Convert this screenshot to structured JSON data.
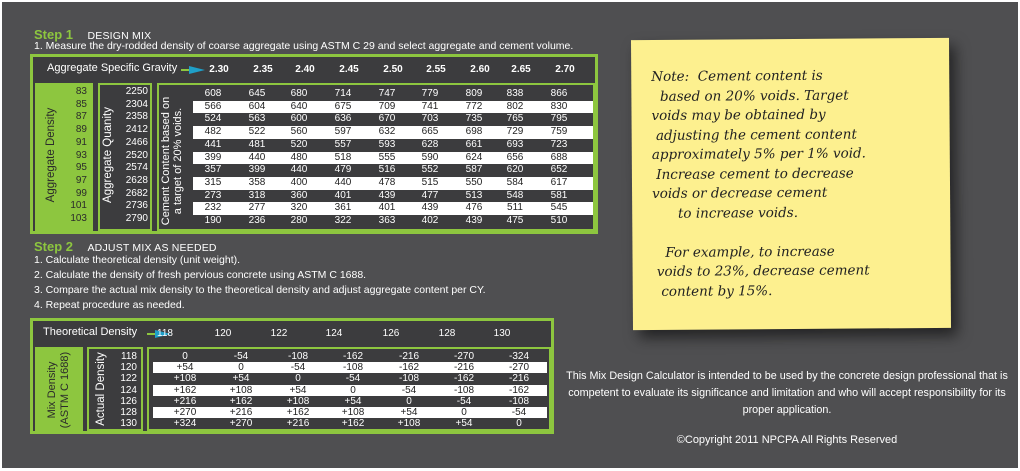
{
  "step1": {
    "number": "Step 1",
    "title": "DESIGN MIX",
    "instruction": "1. Measure the dry-rodded density of coarse aggregate using ASTM C 29 and select aggregate and cement volume.",
    "table": {
      "header_label": "Aggregate Specific Gravity",
      "specific_gravity": [
        "2.30",
        "2.35",
        "2.40",
        "2.45",
        "2.50",
        "2.55",
        "2.60",
        "2.65",
        "2.70"
      ],
      "aggregate_density_label": "Aggregate Density",
      "aggregate_density": [
        "83",
        "85",
        "87",
        "89",
        "91",
        "93",
        "95",
        "97",
        "99",
        "101",
        "103"
      ],
      "aggregate_quantity_label": "Aggregate Quanity",
      "aggregate_quantity": [
        "2250",
        "2304",
        "2358",
        "2412",
        "2466",
        "2520",
        "2574",
        "2628",
        "2682",
        "2736",
        "2790"
      ],
      "cement_label_line1": "Cement Content based on",
      "cement_label_line2": "a target of 20% voids.",
      "cement_content": [
        [
          "608",
          "645",
          "680",
          "714",
          "747",
          "779",
          "809",
          "838",
          "866"
        ],
        [
          "566",
          "604",
          "640",
          "675",
          "709",
          "741",
          "772",
          "802",
          "830"
        ],
        [
          "524",
          "563",
          "600",
          "636",
          "670",
          "703",
          "735",
          "765",
          "795"
        ],
        [
          "482",
          "522",
          "560",
          "597",
          "632",
          "665",
          "698",
          "729",
          "759"
        ],
        [
          "441",
          "481",
          "520",
          "557",
          "593",
          "628",
          "661",
          "693",
          "723"
        ],
        [
          "399",
          "440",
          "480",
          "518",
          "555",
          "590",
          "624",
          "656",
          "688"
        ],
        [
          "357",
          "399",
          "440",
          "479",
          "516",
          "552",
          "587",
          "620",
          "652"
        ],
        [
          "315",
          "358",
          "400",
          "440",
          "478",
          "515",
          "550",
          "584",
          "617"
        ],
        [
          "273",
          "318",
          "360",
          "401",
          "439",
          "477",
          "513",
          "548",
          "581"
        ],
        [
          "232",
          "277",
          "320",
          "361",
          "401",
          "439",
          "476",
          "511",
          "545"
        ],
        [
          "190",
          "236",
          "280",
          "322",
          "363",
          "402",
          "439",
          "475",
          "510"
        ]
      ]
    }
  },
  "step2": {
    "number": "Step 2",
    "title": "ADJUST MIX AS NEEDED",
    "instructions": [
      "1. Calculate theoretical density (unit weight).",
      "2. Calculate the density of fresh pervious concrete using ASTM C 1688.",
      "3. Compare the actual mix density to the theoretical density and adjust aggregate content per CY.",
      "4. Repeat procedure as needed."
    ],
    "table": {
      "header_label": "Theoretical Density",
      "theoretical_density": [
        "118",
        "120",
        "122",
        "124",
        "126",
        "128",
        "130"
      ],
      "mix_density_label_line1": "Mix Density",
      "mix_density_label_line2": "(ASTM C 1688)",
      "actual_density_label": "Actual Density",
      "actual_density": [
        "118",
        "120",
        "122",
        "124",
        "126",
        "128",
        "130"
      ],
      "adjustments": [
        [
          "0",
          "-54",
          "-108",
          "-162",
          "-216",
          "-270",
          "-324"
        ],
        [
          "+54",
          "0",
          "-54",
          "-108",
          "-162",
          "-216",
          "-270"
        ],
        [
          "+108",
          "+54",
          "0",
          "-54",
          "-108",
          "-162",
          "-216"
        ],
        [
          "+162",
          "+108",
          "+54",
          "0",
          "-54",
          "-108",
          "-162"
        ],
        [
          "+216",
          "+162",
          "+108",
          "+54",
          "0",
          "-54",
          "-108"
        ],
        [
          "+270",
          "+216",
          "+162",
          "+108",
          "+54",
          "0",
          "-54"
        ],
        [
          "+324",
          "+270",
          "+216",
          "+162",
          "+108",
          "+54",
          "0"
        ]
      ]
    }
  },
  "note": {
    "lines": [
      "Note:  Cement content is",
      "  based on 20% voids. Target",
      "voids may be obtained by",
      " adjusting the cement content",
      "approximately 5% per 1% void.",
      " Increase cement to decrease",
      "voids or decrease cement",
      "      to increase voids.",
      "",
      "   For example, to increase",
      " voids to 23%, decrease cement",
      "  content by 15%."
    ]
  },
  "disclaimer": "This Mix Design Calculator is intended to be used by the concrete design professional that is competent to evaluate its significance and limitation and who will accept responsibility for its proper application.",
  "copyright": "©Copyright 2011 NPCPA  All Rights Reserved",
  "colors": {
    "background": "#4f4f51",
    "accent_green": "#8dc63f",
    "table_dark": "#3c3c3e",
    "note_yellow": "#fdf08f",
    "arrow_blue": "#1f9fc8"
  }
}
